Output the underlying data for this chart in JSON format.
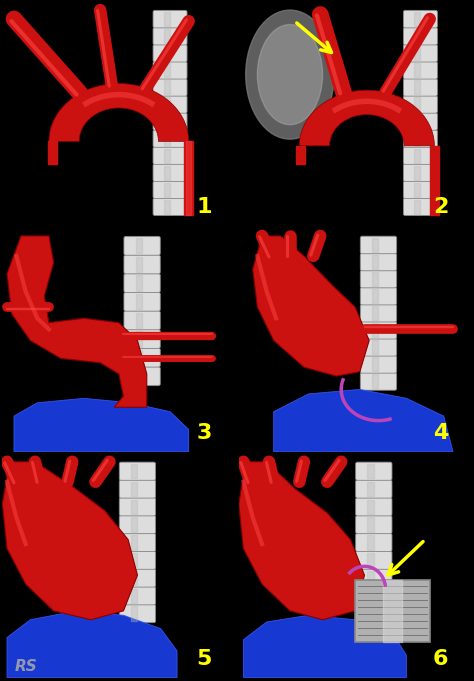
{
  "background_color": "#000000",
  "fig_width": 4.74,
  "fig_height": 6.81,
  "dpi": 100,
  "panel_label_color": "#FFFF00",
  "panel_label_fontsize": 16,
  "panel_label_fontweight": "bold",
  "aorta_color": "#CC1111",
  "aorta_highlight": "#FF4444",
  "aorta_dark": "#880000",
  "spine_color_light": "#DDDDDD",
  "spine_color_dark": "#888888",
  "iliac_color": "#1133CC",
  "iliac_highlight": "#3355EE",
  "arrow_color": "#FFFF00",
  "curve_color": "#BB44BB",
  "watermark_text": "RS",
  "watermark_color": "#AAAAAA",
  "watermark_fontsize": 11
}
